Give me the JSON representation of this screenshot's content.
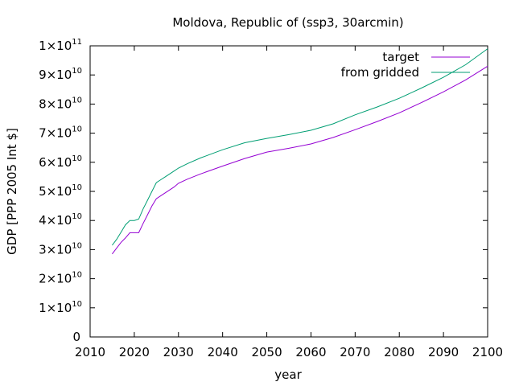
{
  "chart_data": {
    "type": "line",
    "title": "Moldova, Republic of (ssp3, 30arcmin)",
    "xlabel": "year",
    "ylabel": "GDP [PPP 2005 Int $]",
    "xlim": [
      2010,
      2100
    ],
    "ylim": [
      0,
      100000000000
    ],
    "x_ticks": [
      "2010",
      "2020",
      "2030",
      "2040",
      "2050",
      "2060",
      "2070",
      "2080",
      "2090",
      "2100"
    ],
    "y_ticks": [
      {
        "mant": "0",
        "exp": ""
      },
      {
        "mant": "1×10",
        "exp": "10"
      },
      {
        "mant": "2×10",
        "exp": "10"
      },
      {
        "mant": "3×10",
        "exp": "10"
      },
      {
        "mant": "4×10",
        "exp": "10"
      },
      {
        "mant": "5×10",
        "exp": "10"
      },
      {
        "mant": "6×10",
        "exp": "10"
      },
      {
        "mant": "7×10",
        "exp": "10"
      },
      {
        "mant": "8×10",
        "exp": "10"
      },
      {
        "mant": "9×10",
        "exp": "10"
      },
      {
        "mant": "1×10",
        "exp": "11"
      }
    ],
    "grid": false,
    "legend_position": "top-right",
    "series": [
      {
        "name": "target",
        "color": "#9400d3",
        "x": [
          2015,
          2016,
          2017,
          2018,
          2019,
          2020,
          2021,
          2022,
          2023,
          2024,
          2025,
          2026,
          2027,
          2028,
          2029,
          2030,
          2032,
          2035,
          2040,
          2045,
          2050,
          2055,
          2060,
          2065,
          2070,
          2075,
          2080,
          2085,
          2090,
          2095,
          2100
        ],
        "y": [
          28500000000,
          30500000000,
          32500000000,
          34000000000,
          35800000000,
          35800000000,
          35800000000,
          39000000000,
          42000000000,
          45000000000,
          47500000000,
          48500000000,
          49500000000,
          50500000000,
          51500000000,
          52800000000,
          54200000000,
          56000000000,
          58700000000,
          61300000000,
          63500000000,
          64800000000,
          66300000000,
          68500000000,
          71200000000,
          74000000000,
          77000000000,
          80500000000,
          84200000000,
          88300000000,
          93000000000
        ]
      },
      {
        "name": "from gridded",
        "color": "#009e73",
        "x": [
          2015,
          2016,
          2017,
          2018,
          2019,
          2020,
          2021,
          2022,
          2023,
          2024,
          2025,
          2026,
          2027,
          2028,
          2029,
          2030,
          2032,
          2035,
          2040,
          2045,
          2050,
          2055,
          2060,
          2065,
          2070,
          2075,
          2080,
          2085,
          2090,
          2095,
          2100
        ],
        "y": [
          31500000000,
          33500000000,
          36000000000,
          38500000000,
          40000000000,
          40000000000,
          40500000000,
          44000000000,
          47000000000,
          50000000000,
          53000000000,
          54000000000,
          55000000000,
          56000000000,
          57000000000,
          58000000000,
          59500000000,
          61500000000,
          64300000000,
          66700000000,
          68200000000,
          69500000000,
          71000000000,
          73200000000,
          76300000000,
          79000000000,
          82000000000,
          85500000000,
          89200000000,
          93500000000,
          99000000000
        ]
      }
    ]
  }
}
